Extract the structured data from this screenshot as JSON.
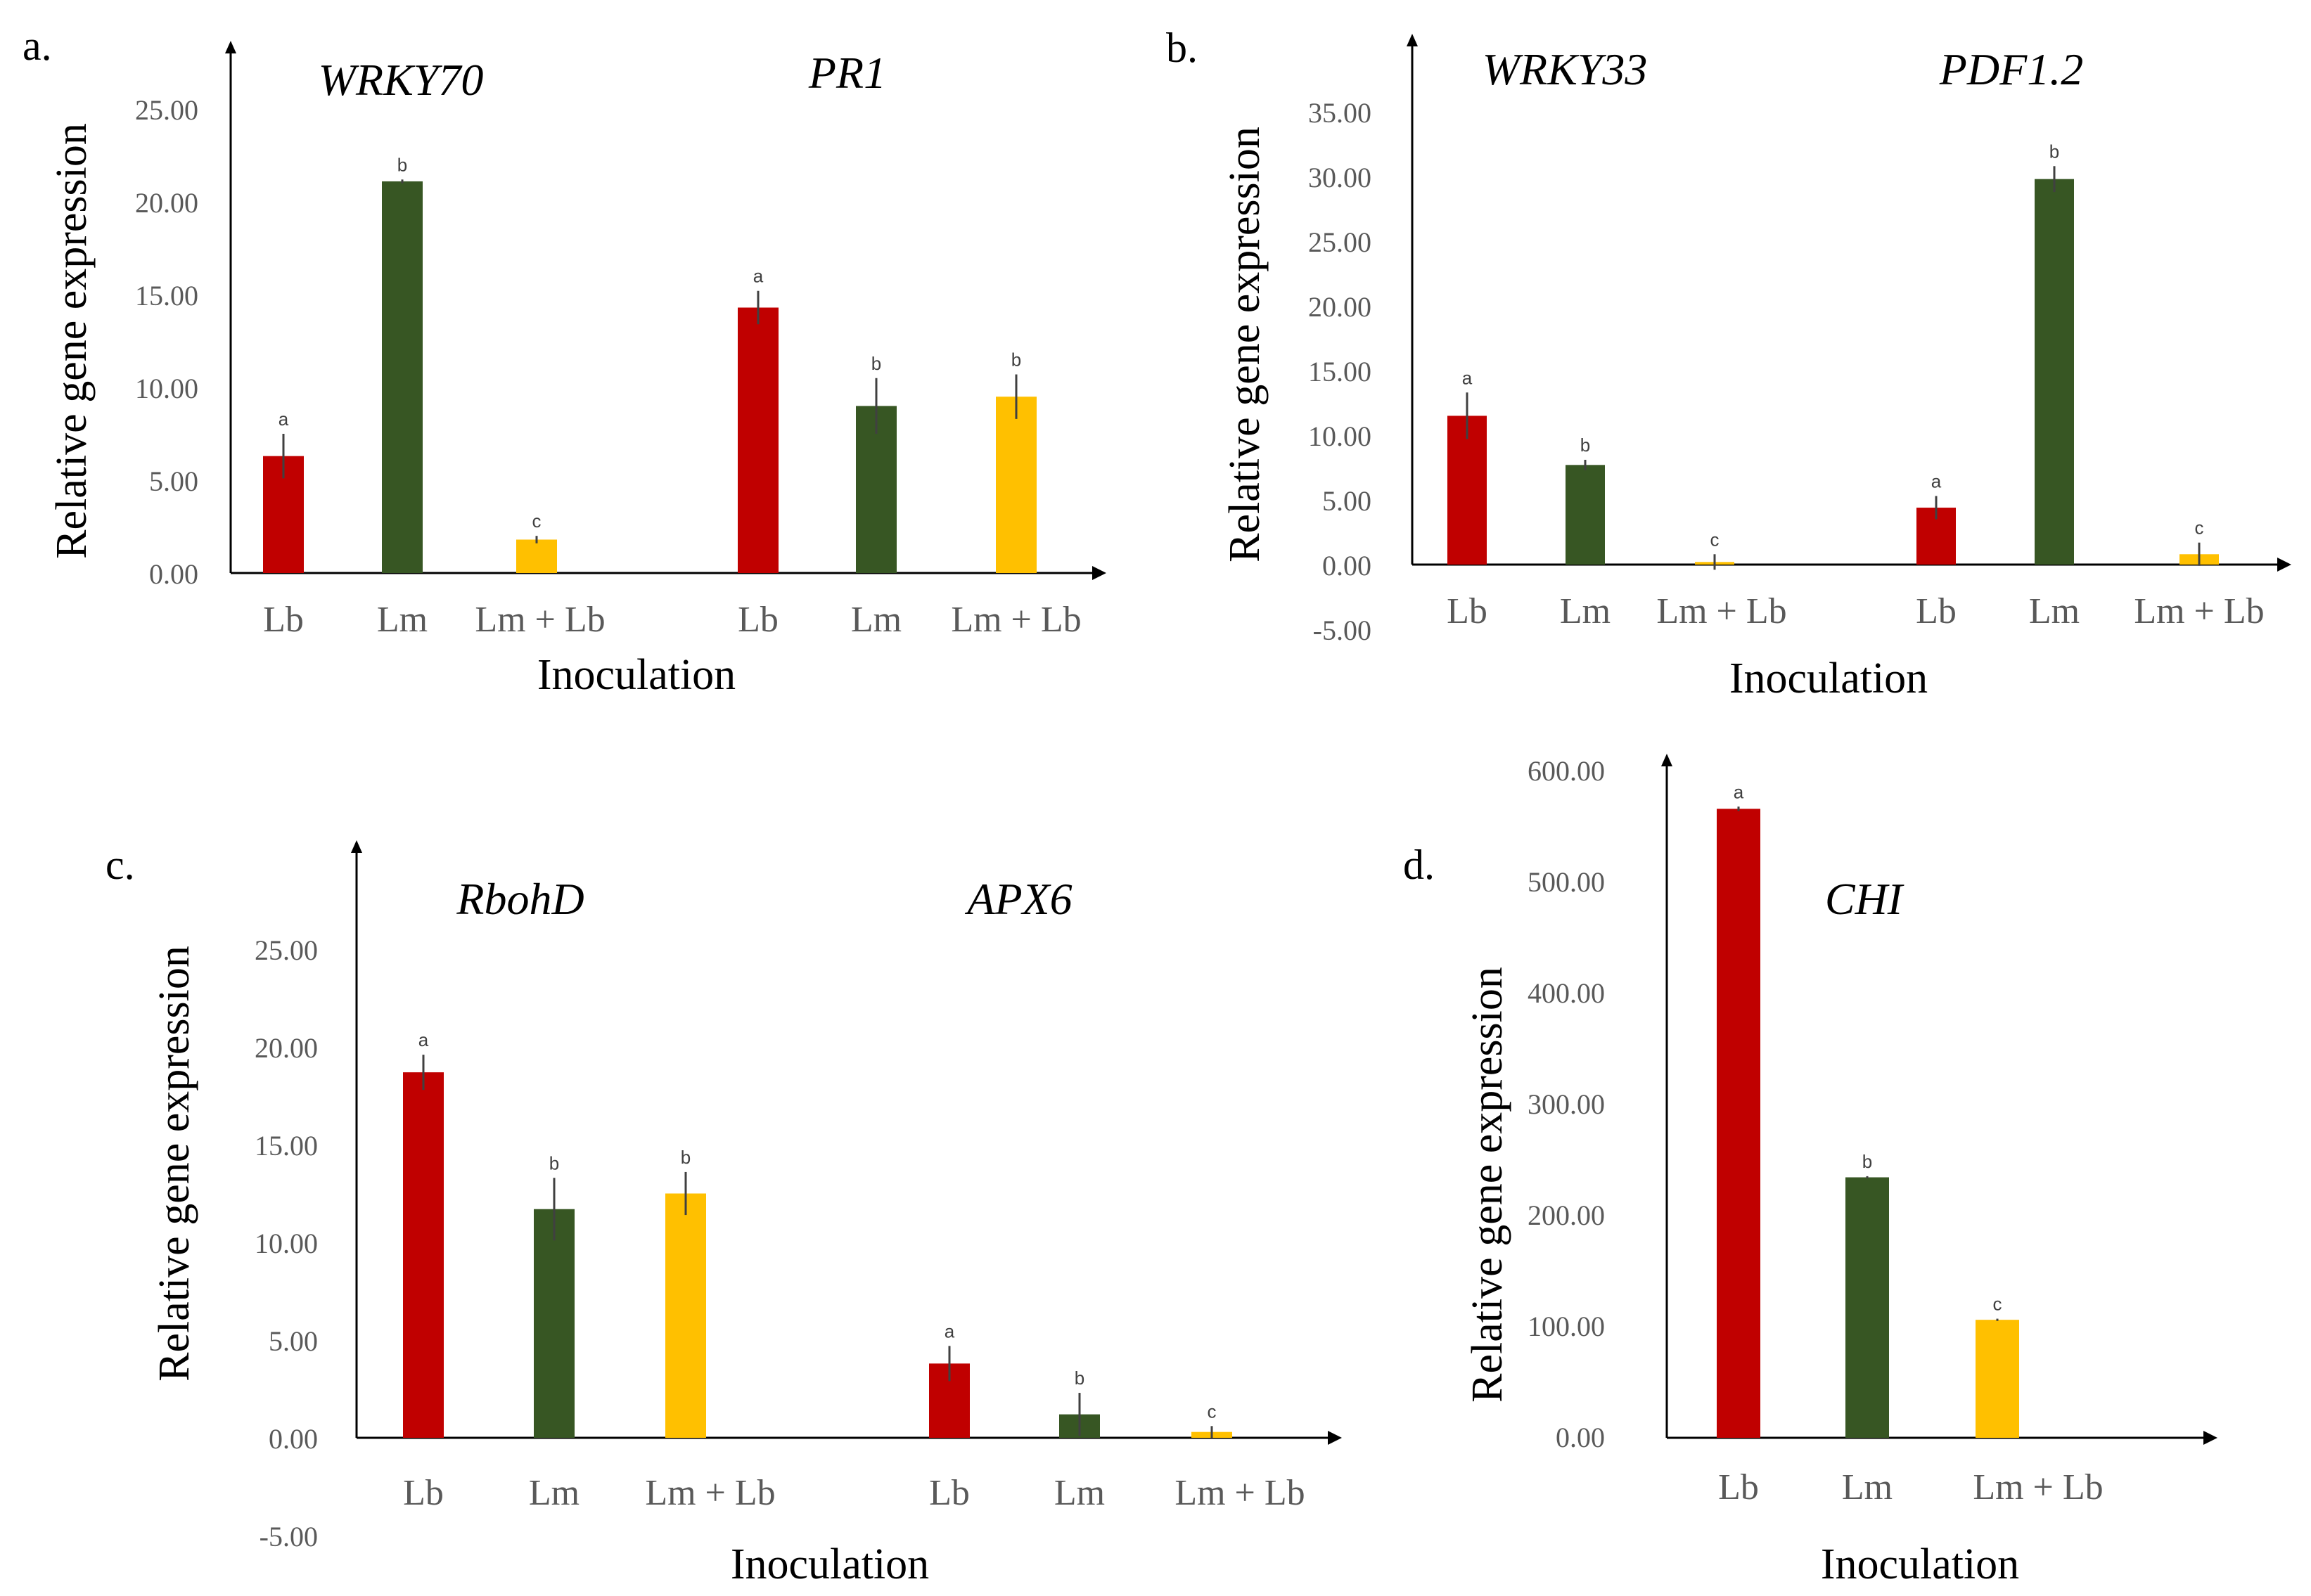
{
  "colors": {
    "Lb": "#c00000",
    "Lm": "#375623",
    "Lm + Lb": "#ffc000",
    "axis": "#000000",
    "text": "#595959",
    "errorbar": "#404040"
  },
  "chart_data": [
    {
      "panel_label": "a.",
      "type": "bar",
      "ylabel": "Relative gene expression",
      "xlabel": "Inoculation",
      "ylim": [
        0,
        25
      ],
      "yticks": [
        "25.00",
        "20.00",
        "15.00",
        "10.00",
        "5.00",
        "0.00"
      ],
      "groups": [
        {
          "gene": "WRKY70",
          "categories": [
            "Lb",
            "Lm",
            "Lm + Lb"
          ],
          "values": [
            6.3,
            21.1,
            1.8
          ],
          "errors": [
            1.2,
            0.1,
            0.2
          ],
          "letters": [
            "a",
            "b",
            "c"
          ]
        },
        {
          "gene": "PR1",
          "categories": [
            "Lb",
            "Lm",
            "Lm + Lb"
          ],
          "values": [
            14.3,
            9.0,
            9.5
          ],
          "errors": [
            0.9,
            1.5,
            1.2
          ],
          "letters": [
            "a",
            "b",
            "b"
          ]
        }
      ]
    },
    {
      "panel_label": "b.",
      "type": "bar",
      "ylabel": "Relative gene expression",
      "xlabel": "Inoculation",
      "ylim": [
        -5,
        35
      ],
      "yticks": [
        "35.00",
        "30.00",
        "25.00",
        "20.00",
        "15.00",
        "10.00",
        "5.00",
        "0.00",
        "-5.00"
      ],
      "groups": [
        {
          "gene": "WRKY33",
          "categories": [
            "Lb",
            "Lm",
            "Lm + Lb"
          ],
          "values": [
            11.5,
            7.7,
            0.2
          ],
          "errors": [
            1.8,
            0.4,
            0.6
          ],
          "letters": [
            "a",
            "b",
            "c"
          ]
        },
        {
          "gene": "PDF1.2",
          "categories": [
            "Lb",
            "Lm",
            "Lm + Lb"
          ],
          "values": [
            4.4,
            29.8,
            0.8
          ],
          "errors": [
            0.9,
            1.0,
            0.9
          ],
          "letters": [
            "a",
            "b",
            "c"
          ]
        }
      ]
    },
    {
      "panel_label": "c.",
      "type": "bar",
      "ylabel": "Relative gene expression",
      "xlabel": "Inoculation",
      "ylim": [
        -5,
        25
      ],
      "yticks": [
        "25.00",
        "20.00",
        "15.00",
        "10.00",
        "5.00",
        "0.00",
        "-5.00"
      ],
      "groups": [
        {
          "gene": "RbohD",
          "categories": [
            "Lb",
            "Lm",
            "Lm + Lb"
          ],
          "values": [
            18.7,
            11.7,
            12.5
          ],
          "errors": [
            0.9,
            1.6,
            1.1
          ],
          "letters": [
            "a",
            "b",
            "b"
          ]
        },
        {
          "gene": "APX6",
          "categories": [
            "Lb",
            "Lm",
            "Lm + Lb"
          ],
          "values": [
            3.8,
            1.2,
            0.3
          ],
          "errors": [
            0.9,
            1.1,
            0.3
          ],
          "letters": [
            "a",
            "b",
            "c"
          ]
        }
      ]
    },
    {
      "panel_label": "d.",
      "type": "bar",
      "ylabel": "Relative gene expression",
      "xlabel": "Inoculation",
      "ylim": [
        0,
        600
      ],
      "yticks": [
        "600.00",
        "500.00",
        "400.00",
        "300.00",
        "200.00",
        "100.00",
        "0.00"
      ],
      "groups": [
        {
          "gene": "CHI",
          "categories": [
            "Lb",
            "Lm",
            "Lm + Lb"
          ],
          "values": [
            565,
            234,
            106
          ],
          "errors": [
            2,
            1,
            1
          ],
          "letters": [
            "a",
            "b",
            "c"
          ]
        }
      ]
    }
  ]
}
